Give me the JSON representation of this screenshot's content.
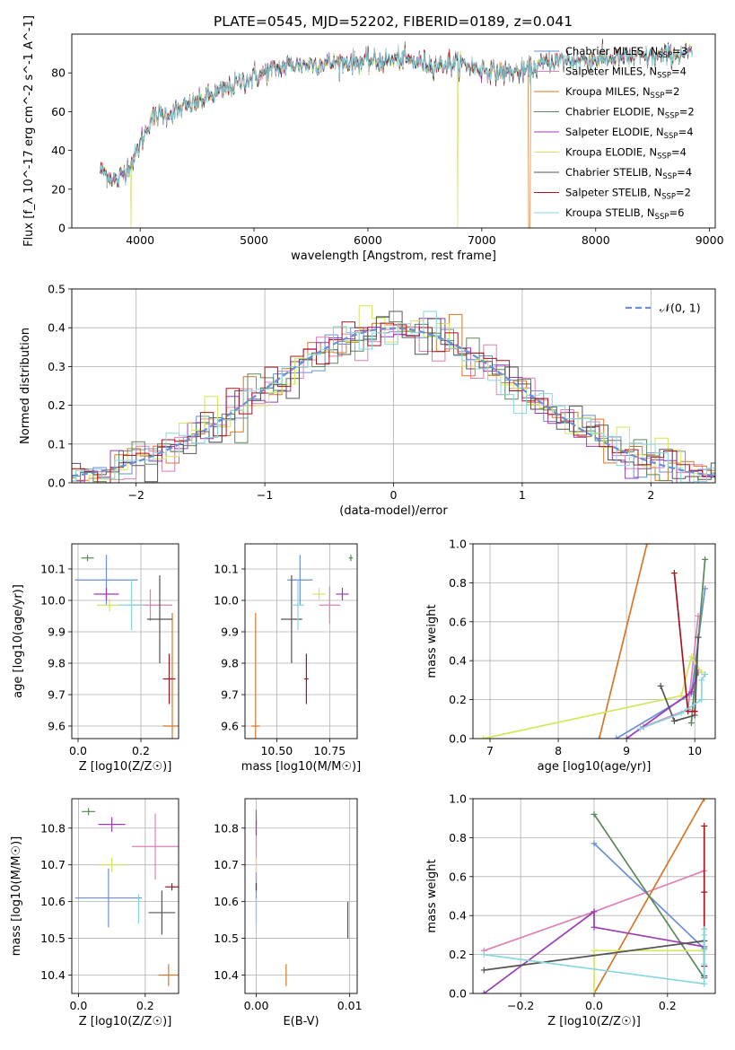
{
  "figure_title": "PLATE=0545, MJD=52202, FIBERID=0189, z=0.041",
  "models": [
    {
      "name": "Chabrier MILES",
      "nssp": "3",
      "color": "#6a8fd6"
    },
    {
      "name": "Salpeter MILES",
      "nssp": "4",
      "color": "#e07fb6"
    },
    {
      "name": "Kroupa MILES",
      "nssp": "2",
      "color": "#d6772a"
    },
    {
      "name": "Chabrier ELODIE",
      "nssp": "2",
      "color": "#5a8a5a"
    },
    {
      "name": "Salpeter ELODIE",
      "nssp": "4",
      "color": "#9c3bb5"
    },
    {
      "name": "Kroupa ELODIE",
      "nssp": "4",
      "color": "#d4e65a"
    },
    {
      "name": "Chabrier STELIB",
      "nssp": "4",
      "color": "#555555"
    },
    {
      "name": "Salpeter STELIB",
      "nssp": "2",
      "color": "#a8141e"
    },
    {
      "name": "Kroupa STELIB",
      "nssp": "6",
      "color": "#86d6e0"
    }
  ],
  "chart_data": [
    {
      "id": "spectrum",
      "type": "line",
      "xlabel": "wavelength [Angstrom, rest frame]",
      "ylabel": "Flux [f_λ 10^-17 erg cm^-2 s^-1 A^-1]",
      "xlim": [
        3400,
        9050
      ],
      "ylim": [
        0,
        100
      ],
      "xticks": [
        4000,
        5000,
        6000,
        7000,
        8000,
        9000
      ],
      "yticks": [
        0,
        20,
        40,
        60,
        80
      ],
      "continuum_x": [
        3650,
        3800,
        3950,
        4100,
        4300,
        4500,
        4800,
        5000,
        5300,
        5600,
        6000,
        6300,
        6600,
        6800,
        7000,
        7200,
        7400,
        7600,
        8000,
        8400,
        8800
      ],
      "continuum_y": [
        30,
        24,
        36,
        57,
        60,
        65,
        73,
        78,
        84,
        85,
        86,
        87,
        84,
        85,
        82,
        80,
        81,
        86,
        87,
        88,
        90
      ],
      "legend_placement": "top-right"
    },
    {
      "id": "residuals",
      "type": "histogram",
      "xlabel": "(data-model)/error",
      "ylabel": "Normed distribution",
      "xlim": [
        -2.5,
        2.5
      ],
      "ylim": [
        0,
        0.5
      ],
      "xticks": [
        -2,
        -1,
        0,
        1,
        2
      ],
      "yticks": [
        0.0,
        0.1,
        0.2,
        0.3,
        0.4,
        0.5
      ],
      "bin_width": 0.1,
      "reference_label": "𝒩(0, 1)",
      "reference_color": "#6a8fd6",
      "legend_placement": "top-right",
      "grid": true
    },
    {
      "id": "age-vs-Z",
      "type": "scatter",
      "xlabel": "Z [log10(Z/Z☉)]",
      "ylabel": "age [log10(age/yr)]",
      "xlim": [
        -0.02,
        0.32
      ],
      "ylim": [
        9.56,
        10.18
      ],
      "xticks": [
        0.0,
        0.2
      ],
      "yticks": [
        9.6,
        9.7,
        9.8,
        9.9,
        10.0,
        10.1
      ],
      "grid": true,
      "points": [
        {
          "x": 0.09,
          "y": 10.065,
          "xerr": 0.1,
          "yerr": 0.08
        },
        {
          "x": 0.23,
          "y": 9.985,
          "xerr": 0.07,
          "yerr": 0.05
        },
        {
          "x": 0.3,
          "y": 9.6,
          "xerr": 0.03,
          "yerr": 0.36
        },
        {
          "x": 0.03,
          "y": 10.135,
          "xerr": 0.02,
          "yerr": 0.01
        },
        {
          "x": 0.09,
          "y": 10.02,
          "xerr": 0.04,
          "yerr": 0.02
        },
        {
          "x": 0.1,
          "y": 9.985,
          "xerr": 0.04,
          "yerr": 0.02
        },
        {
          "x": 0.26,
          "y": 9.94,
          "xerr": 0.04,
          "yerr": 0.14
        },
        {
          "x": 0.29,
          "y": 9.75,
          "xerr": 0.02,
          "yerr": 0.08
        },
        {
          "x": 0.17,
          "y": 9.985,
          "xerr": 0.04,
          "yerr": 0.08
        }
      ]
    },
    {
      "id": "age-vs-mass",
      "type": "scatter",
      "xlabel": "mass [log10(M/M☉)]",
      "ylabel": "",
      "xlim": [
        10.35,
        10.88
      ],
      "ylim": [
        9.56,
        10.18
      ],
      "xticks": [
        10.5,
        10.75
      ],
      "yticks": [
        9.6,
        9.7,
        9.8,
        9.9,
        10.0,
        10.1
      ],
      "grid": true,
      "points": [
        {
          "x": 10.61,
          "y": 10.065,
          "xerr": 0.06,
          "yerr": 0.08
        },
        {
          "x": 10.75,
          "y": 9.985,
          "xerr": 0.05,
          "yerr": 0.06
        },
        {
          "x": 10.4,
          "y": 9.6,
          "xerr": 0.02,
          "yerr": 0.36
        },
        {
          "x": 10.85,
          "y": 10.135,
          "xerr": 0.01,
          "yerr": 0.01
        },
        {
          "x": 10.81,
          "y": 10.02,
          "xerr": 0.03,
          "yerr": 0.02
        },
        {
          "x": 10.7,
          "y": 10.02,
          "xerr": 0.03,
          "yerr": 0.02
        },
        {
          "x": 10.57,
          "y": 9.94,
          "xerr": 0.05,
          "yerr": 0.14
        },
        {
          "x": 10.64,
          "y": 9.75,
          "xerr": 0.01,
          "yerr": 0.08
        },
        {
          "x": 10.6,
          "y": 9.985,
          "xerr": 0.03,
          "yerr": 0.08
        }
      ]
    },
    {
      "id": "weight-vs-age",
      "type": "line",
      "xlabel": "age [log10(age/yr)]",
      "ylabel": "mass weight",
      "xlim": [
        6.75,
        10.3
      ],
      "ylim": [
        0,
        1
      ],
      "xticks": [
        7,
        8,
        9,
        10
      ],
      "yticks": [
        0.0,
        0.2,
        0.4,
        0.6,
        0.8,
        1.0
      ],
      "grid": true,
      "series": [
        {
          "x": [
            8.85,
            9.95,
            10.15
          ],
          "y": [
            0.0,
            0.23,
            0.77
          ]
        },
        {
          "x": [
            9.25,
            9.9,
            10.05
          ],
          "y": [
            0.06,
            0.15,
            0.63
          ]
        },
        {
          "x": [
            8.6,
            9.3
          ],
          "y": [
            0.0,
            1.0
          ]
        },
        {
          "x": [
            9.95,
            10.15
          ],
          "y": [
            0.08,
            0.92
          ]
        },
        {
          "x": [
            9.0,
            9.95,
            10.05
          ],
          "y": [
            0.0,
            0.24,
            0.34
          ]
        },
        {
          "x": [
            6.9,
            9.8,
            9.95,
            10.1
          ],
          "y": [
            0.0,
            0.22,
            0.42,
            0.34
          ]
        },
        {
          "x": [
            9.5,
            9.7,
            10.0,
            10.05
          ],
          "y": [
            0.27,
            0.09,
            0.12,
            0.52
          ]
        },
        {
          "x": [
            9.7,
            9.9,
            10.0
          ],
          "y": [
            0.85,
            0.14,
            0.14
          ]
        },
        {
          "x": [
            9.2,
            9.8,
            10.1,
            10.1,
            10.15
          ],
          "y": [
            0.05,
            0.13,
            0.2,
            0.3,
            0.33
          ]
        }
      ]
    },
    {
      "id": "mass-vs-Z",
      "type": "scatter",
      "xlabel": "Z [log10(Z/Z☉)]",
      "ylabel": "mass [log10(M/M☉)]",
      "xlim": [
        -0.02,
        0.3
      ],
      "ylim": [
        10.35,
        10.88
      ],
      "xticks": [
        0.0,
        0.2
      ],
      "yticks": [
        10.4,
        10.5,
        10.6,
        10.7,
        10.8
      ],
      "grid": true,
      "points": [
        {
          "x": 0.09,
          "y": 10.61,
          "xerr": 0.1,
          "yerr": 0.08
        },
        {
          "x": 0.23,
          "y": 10.75,
          "xerr": 0.07,
          "yerr": 0.09
        },
        {
          "x": 0.27,
          "y": 10.4,
          "xerr": 0.03,
          "yerr": 0.03
        },
        {
          "x": 0.03,
          "y": 10.845,
          "xerr": 0.02,
          "yerr": 0.01
        },
        {
          "x": 0.1,
          "y": 10.81,
          "xerr": 0.04,
          "yerr": 0.02
        },
        {
          "x": 0.1,
          "y": 10.7,
          "xerr": 0.04,
          "yerr": 0.02
        },
        {
          "x": 0.25,
          "y": 10.57,
          "xerr": 0.04,
          "yerr": 0.06
        },
        {
          "x": 0.28,
          "y": 10.64,
          "xerr": 0.02,
          "yerr": 0.01
        },
        {
          "x": 0.18,
          "y": 10.58,
          "xerr": 0.0,
          "yerr": 0.04
        }
      ]
    },
    {
      "id": "mass-vs-EBV",
      "type": "scatter",
      "xlabel": "E(B-V)",
      "ylabel": "",
      "xlim": [
        -0.0012,
        0.0108
      ],
      "ylim": [
        10.35,
        10.88
      ],
      "xticks": [
        0.0,
        0.01
      ],
      "yticks": [
        10.4,
        10.5,
        10.6,
        10.7,
        10.8
      ],
      "grid": true,
      "points": [
        {
          "x": 0.0,
          "y": 10.61,
          "xerr": 0,
          "yerr": 0.07
        },
        {
          "x": 0.0,
          "y": 10.75,
          "xerr": 0,
          "yerr": 0.09
        },
        {
          "x": 0.0032,
          "y": 10.4,
          "xerr": 0,
          "yerr": 0.03
        },
        {
          "x": 0.0,
          "y": 10.83,
          "xerr": 0,
          "yerr": 0.02
        },
        {
          "x": 0.0,
          "y": 10.8,
          "xerr": 0,
          "yerr": 0.02
        },
        {
          "x": 0.0,
          "y": 10.7,
          "xerr": 0,
          "yerr": 0.02
        },
        {
          "x": 0.0098,
          "y": 10.55,
          "xerr": 0,
          "yerr": 0.05
        },
        {
          "x": 0.0,
          "y": 10.64,
          "xerr": 0,
          "yerr": 0.01
        },
        {
          "x": 0.0,
          "y": 10.57,
          "xerr": 0,
          "yerr": 0.04
        }
      ]
    },
    {
      "id": "weight-vs-Z",
      "type": "line",
      "xlabel": "Z [log10(Z/Z☉)]",
      "ylabel": "mass weight",
      "xlim": [
        -0.33,
        0.33
      ],
      "ylim": [
        0,
        1
      ],
      "xticks": [
        -0.2,
        0.0,
        0.2
      ],
      "yticks": [
        0.0,
        0.2,
        0.4,
        0.6,
        0.8,
        1.0
      ],
      "grid": true,
      "series": [
        {
          "x": [
            0.0,
            0.3
          ],
          "y": [
            0.77,
            0.23
          ]
        },
        {
          "x": [
            -0.3,
            0.0,
            0.3
          ],
          "y": [
            0.22,
            0.42,
            0.63
          ]
        },
        {
          "x": [
            0.0,
            0.3
          ],
          "y": [
            0.0,
            1.0
          ]
        },
        {
          "x": [
            0.0,
            0.3
          ],
          "y": [
            0.92,
            0.08
          ]
        },
        {
          "x": [
            -0.3,
            0.0,
            0.0,
            0.3
          ],
          "y": [
            0.0,
            0.42,
            0.34,
            0.24
          ]
        },
        {
          "x": [
            0.0,
            0.0,
            0.3
          ],
          "y": [
            0.0,
            0.22,
            0.22
          ]
        },
        {
          "x": [
            -0.3,
            0.3,
            0.3
          ],
          "y": [
            0.12,
            0.27,
            0.09
          ]
        },
        {
          "x": [
            0.3,
            0.3,
            0.3
          ],
          "y": [
            0.86,
            0.52,
            0.14
          ]
        },
        {
          "x": [
            -0.3,
            0.3,
            0.3,
            0.3,
            0.3
          ],
          "y": [
            0.2,
            0.05,
            0.15,
            0.3,
            0.33
          ]
        }
      ]
    }
  ]
}
